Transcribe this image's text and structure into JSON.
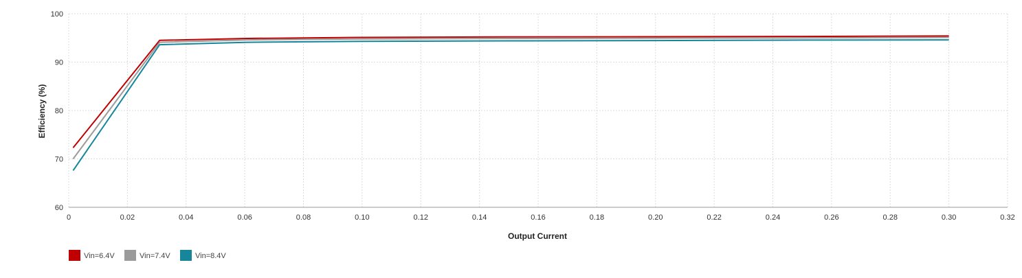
{
  "chart_data": {
    "type": "line",
    "title": "",
    "xlabel": "Output Current",
    "ylabel": "Efficiency (%)",
    "xlim": [
      0,
      0.32
    ],
    "ylim": [
      60,
      100
    ],
    "x_ticks": [
      0,
      0.02,
      0.04,
      0.06,
      0.08,
      0.1,
      0.12,
      0.14,
      0.16,
      0.18,
      0.2,
      0.22,
      0.24,
      0.26,
      0.28,
      0.3,
      0.32
    ],
    "x_tick_labels": [
      "0",
      "0.02",
      "0.04",
      "0.06",
      "0.08",
      "0.10",
      "0.12",
      "0.14",
      "0.16",
      "0.18",
      "0.20",
      "0.22",
      "0.24",
      "0.26",
      "0.28",
      "0.30",
      "0.32"
    ],
    "y_ticks": [
      60,
      70,
      80,
      90,
      100
    ],
    "y_tick_labels": [
      "60",
      "70",
      "80",
      "90",
      "100"
    ],
    "grid": true,
    "legend_position": "bottom-left",
    "series": [
      {
        "name": "Vin=6.4V",
        "color": "#c00000",
        "x": [
          0.0015,
          0.031,
          0.061,
          0.1,
          0.15,
          0.2,
          0.25,
          0.3
        ],
        "y": [
          72.3,
          94.5,
          94.9,
          95.1,
          95.2,
          95.25,
          95.3,
          95.4
        ]
      },
      {
        "name": "Vin=7.4V",
        "color": "#9b9b9b",
        "x": [
          0.0015,
          0.031,
          0.061,
          0.1,
          0.15,
          0.2,
          0.25,
          0.3
        ],
        "y": [
          70.0,
          94.1,
          94.6,
          94.8,
          94.9,
          94.95,
          95.0,
          95.1
        ]
      },
      {
        "name": "Vin=8.4V",
        "color": "#16869a",
        "x": [
          0.0015,
          0.031,
          0.061,
          0.1,
          0.15,
          0.2,
          0.25,
          0.3
        ],
        "y": [
          67.6,
          93.6,
          94.1,
          94.3,
          94.4,
          94.45,
          94.55,
          94.6
        ]
      }
    ]
  }
}
